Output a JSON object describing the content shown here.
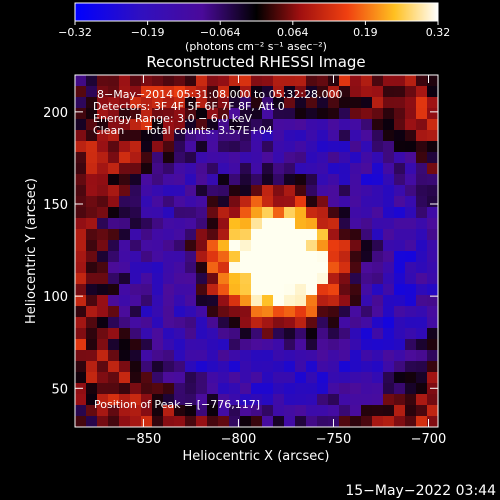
{
  "chart_data": {
    "type": "heatmap",
    "title": "Reconstructed RHESSI Image",
    "colorbar": {
      "ticks": [
        "-0.32",
        "-0.19",
        "-0.064",
        "0.064",
        "0.19",
        "0.32"
      ],
      "range": [
        -0.32,
        0.32
      ],
      "unit_label": "(photons cm⁻² s⁻¹ asec⁻²)"
    },
    "xlabel": "Heliocentric X (arcsec)",
    "ylabel": "Heliocentric Y (arcsec)",
    "xlim": [
      -886,
      -695
    ],
    "ylim": [
      29,
      220
    ],
    "xticks": [
      -850,
      -800,
      -750,
      -700
    ],
    "xtick_labels": [
      "−850",
      "−800",
      "−750",
      "−700"
    ],
    "yticks": [
      50,
      100,
      150,
      200
    ],
    "ytick_labels": [
      "50",
      "100",
      "150",
      "200"
    ],
    "peak": {
      "x": -776,
      "y": 117
    },
    "colors": {
      "low": "#0000ff",
      "mid_dark": "#4a0a9a",
      "zero": "#000000",
      "red": "#e02010",
      "yellow": "#ffe020",
      "high": "#ffffff"
    }
  },
  "annotations": {
    "time_range": "8−May−2014 05:31:08.000 to 05:32:28.000",
    "detectors": "Detectors: 3F 4F 5F 6F 7F 8F, Att 0",
    "energy": "Energy Range: 3.0 − 6.0 keV",
    "clean": "Clean",
    "total_counts": "Total counts: 3.57E+04",
    "peak_label": "Position of Peak = [−776,117]"
  },
  "footer": {
    "date": "15−May−2022 03:44"
  }
}
